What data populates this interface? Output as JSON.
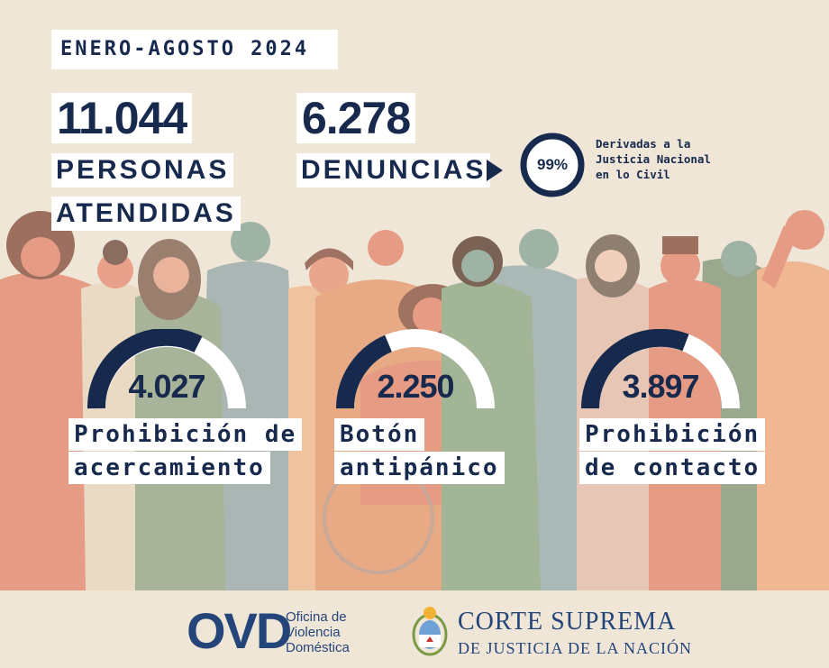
{
  "header": {
    "period": "ENERO-AGOSTO 2024"
  },
  "stats": {
    "attended": {
      "number": "11.044",
      "label_line1": "PERSONAS",
      "label_line2": "ATENDIDAS"
    },
    "complaints": {
      "number": "6.278",
      "label": "DENUNCIAS"
    },
    "derived": {
      "percent_text": "99%",
      "percent_value": 99,
      "note_lines": [
        "Derivadas a la",
        "Justicia Nacional",
        "en lo Civil"
      ]
    }
  },
  "measures": [
    {
      "value": "4.027",
      "label_lines": [
        "Prohibición de",
        "acercamiento"
      ]
    },
    {
      "value": "2.250",
      "label_lines": [
        "Botón",
        "antipánico"
      ]
    },
    {
      "value": "3.897",
      "label_lines": [
        "Prohibición",
        "de contacto"
      ]
    }
  ],
  "footer": {
    "ovd_logo": "OVD",
    "ovd_lines": [
      "Oficina de",
      "Violencia",
      "Doméstica"
    ],
    "court_line1": "CORTE SUPREMA",
    "court_line2": "DE JUSTICIA DE LA NACIÓN"
  },
  "colors": {
    "navy": "#17294d",
    "background": "#f0e6d8",
    "brand_blue": "#24457a"
  }
}
